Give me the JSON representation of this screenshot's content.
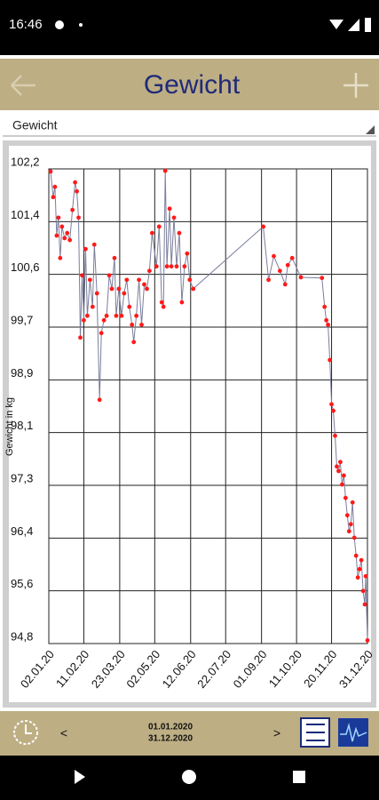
{
  "ui": {
    "status_time": "16:46",
    "header_title": "Gewicht",
    "dropdown": "Gewicht",
    "date_from": "01.01.2020",
    "date_to": "31.12.2020",
    "prev": "<",
    "next": ">"
  },
  "chart_data": {
    "type": "line",
    "y_label": "Gewicht in kg",
    "color": "#ff1a1a",
    "line_color": "#7a7e9c",
    "grid": true,
    "x": [
      "2020-01-04",
      "2020-01-07",
      "2020-01-09",
      "2020-01-11",
      "2020-01-13",
      "2020-01-15",
      "2020-01-17",
      "2020-01-20",
      "2020-01-23",
      "2020-01-26",
      "2020-01-29",
      "2020-02-01",
      "2020-02-03",
      "2020-02-05",
      "2020-02-07",
      "2020-02-09",
      "2020-02-11",
      "2020-02-13",
      "2020-02-15",
      "2020-02-18",
      "2020-02-21",
      "2020-02-23",
      "2020-02-26",
      "2020-02-29",
      "2020-03-02",
      "2020-03-05",
      "2020-03-08",
      "2020-03-11",
      "2020-03-14",
      "2020-03-17",
      "2020-03-19",
      "2020-03-22",
      "2020-03-25",
      "2020-03-28",
      "2020-03-31",
      "2020-04-03",
      "2020-04-06",
      "2020-04-08",
      "2020-04-11",
      "2020-04-14",
      "2020-04-17",
      "2020-04-20",
      "2020-04-23",
      "2020-04-26",
      "2020-04-29",
      "2020-05-04",
      "2020-05-07",
      "2020-05-10",
      "2020-05-12",
      "2020-05-14",
      "2020-05-16",
      "2020-05-19",
      "2020-05-21",
      "2020-05-24",
      "2020-05-27",
      "2020-05-30",
      "2020-06-02",
      "2020-06-05",
      "2020-06-08",
      "2020-06-11",
      "2020-06-15",
      "2020-09-03",
      "2020-09-09",
      "2020-09-15",
      "2020-09-22",
      "2020-09-28",
      "2020-10-01",
      "2020-10-06",
      "2020-10-16",
      "2020-11-09",
      "2020-11-12",
      "2020-11-14",
      "2020-11-16",
      "2020-11-18",
      "2020-11-20",
      "2020-11-22",
      "2020-11-24",
      "2020-11-26",
      "2020-11-28",
      "2020-11-30",
      "2020-12-02",
      "2020-12-04",
      "2020-12-06",
      "2020-12-08",
      "2020-12-10",
      "2020-12-12",
      "2020-12-14",
      "2020-12-16",
      "2020-12-18",
      "2020-12-20",
      "2020-12-22",
      "2020-12-24",
      "2020-12-26",
      "2020-12-28",
      "2020-12-29",
      "2020-12-31"
    ],
    "values": [
      102.16,
      101.76,
      101.92,
      101.16,
      101.44,
      100.81,
      101.3,
      101.12,
      101.2,
      101.09,
      101.56,
      101.99,
      101.85,
      101.44,
      99.57,
      100.54,
      99.84,
      100.95,
      99.91,
      100.47,
      100.05,
      101.02,
      100.26,
      98.6,
      99.64,
      99.84,
      99.91,
      100.54,
      100.33,
      100.81,
      99.91,
      100.33,
      99.91,
      100.26,
      100.47,
      100.05,
      99.77,
      99.5,
      99.91,
      100.47,
      99.77,
      100.4,
      100.33,
      100.61,
      101.2,
      100.68,
      101.3,
      100.12,
      100.05,
      102.17,
      100.68,
      101.58,
      100.68,
      101.44,
      100.68,
      101.2,
      100.12,
      100.68,
      100.88,
      100.47,
      100.33,
      101.3,
      100.47,
      100.84,
      100.61,
      100.4,
      100.7,
      100.81,
      100.51,
      100.5,
      100.05,
      99.84,
      99.77,
      99.22,
      98.53,
      98.43,
      98.04,
      97.56,
      97.49,
      97.63,
      97.28,
      97.42,
      97.07,
      96.8,
      96.55,
      96.66,
      97.0,
      96.45,
      96.17,
      95.83,
      95.96,
      96.1,
      95.62,
      95.41,
      95.85,
      94.85
    ],
    "xlim": [
      "2020-01-02",
      "2020-12-31"
    ],
    "xticks": [
      {
        "value": "2020-01-02",
        "label": "02.01.20"
      },
      {
        "value": "2020-02-11",
        "label": "11.02.20"
      },
      {
        "value": "2020-03-23",
        "label": "23.03.20"
      },
      {
        "value": "2020-05-02",
        "label": "02.05.20"
      },
      {
        "value": "2020-06-12",
        "label": "12.06.20"
      },
      {
        "value": "2020-07-22",
        "label": "22.07.20"
      },
      {
        "value": "2020-09-01",
        "label": "01.09.20"
      },
      {
        "value": "2020-10-11",
        "label": "11.10.20"
      },
      {
        "value": "2020-11-20",
        "label": "20.11.20"
      },
      {
        "value": "2020-12-31",
        "label": "31.12.20"
      }
    ],
    "ylim": [
      94.8,
      102.2
    ],
    "yticks": [
      {
        "value": 94.8,
        "label": "94,8"
      },
      {
        "value": 95.622,
        "label": "95,6"
      },
      {
        "value": 96.444,
        "label": "96,4"
      },
      {
        "value": 97.267,
        "label": "97,3"
      },
      {
        "value": 98.089,
        "label": "98,1"
      },
      {
        "value": 98.911,
        "label": "98,9"
      },
      {
        "value": 99.733,
        "label": "99,7"
      },
      {
        "value": 100.556,
        "label": "100,6"
      },
      {
        "value": 101.378,
        "label": "101,4"
      },
      {
        "value": 102.2,
        "label": "102,2"
      }
    ]
  }
}
